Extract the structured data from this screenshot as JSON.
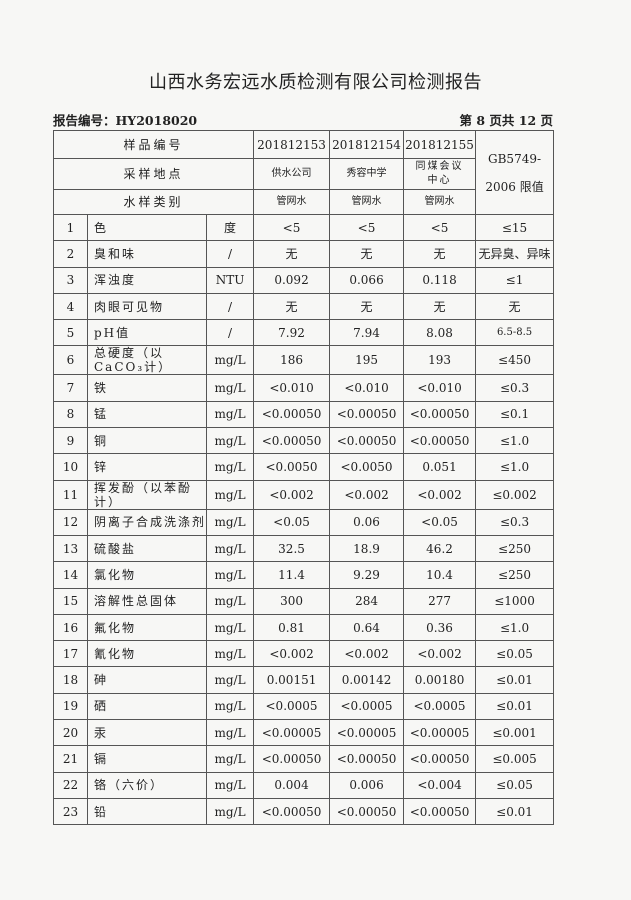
{
  "title": "山西水务宏远水质检测有限公司检测报告",
  "report_no": "报告编号：HY2018020",
  "page_info": "第 8 页共 12 页",
  "header": {
    "sample_no_label": "样品编号",
    "location_label": "采样地点",
    "type_label": "水样类别",
    "limit_label": "GB5749-2006 限值",
    "samples": [
      {
        "no": "201812153",
        "location": "供水公司",
        "type": "管网水"
      },
      {
        "no": "201812154",
        "location": "秀容中学",
        "type": "管网水"
      },
      {
        "no": "201812155",
        "location": "同煤会议中心",
        "type": "管网水"
      }
    ]
  },
  "rows": [
    {
      "n": "1",
      "name": "色",
      "unit": "度",
      "v": [
        "<5",
        "<5",
        "<5"
      ],
      "limit": "≤15"
    },
    {
      "n": "2",
      "name": "臭和味",
      "unit": "/",
      "v": [
        "无",
        "无",
        "无"
      ],
      "limit": "无异臭、异味"
    },
    {
      "n": "3",
      "name": "浑浊度",
      "unit": "NTU",
      "v": [
        "0.092",
        "0.066",
        "0.118"
      ],
      "limit": "≤1"
    },
    {
      "n": "4",
      "name": "肉眼可见物",
      "unit": "/",
      "v": [
        "无",
        "无",
        "无"
      ],
      "limit": "无"
    },
    {
      "n": "5",
      "name": "pH值",
      "unit": "/",
      "v": [
        "7.92",
        "7.94",
        "8.08"
      ],
      "limit": "6.5-8.5"
    },
    {
      "n": "6",
      "name": "总硬度（以CaCO₃计）",
      "unit": "mg/L",
      "v": [
        "186",
        "195",
        "193"
      ],
      "limit": "≤450"
    },
    {
      "n": "7",
      "name": "铁",
      "unit": "mg/L",
      "v": [
        "<0.010",
        "<0.010",
        "<0.010"
      ],
      "limit": "≤0.3"
    },
    {
      "n": "8",
      "name": "锰",
      "unit": "mg/L",
      "v": [
        "<0.00050",
        "<0.00050",
        "<0.00050"
      ],
      "limit": "≤0.1"
    },
    {
      "n": "9",
      "name": "铜",
      "unit": "mg/L",
      "v": [
        "<0.00050",
        "<0.00050",
        "<0.00050"
      ],
      "limit": "≤1.0"
    },
    {
      "n": "10",
      "name": "锌",
      "unit": "mg/L",
      "v": [
        "<0.0050",
        "<0.0050",
        "0.051"
      ],
      "limit": "≤1.0"
    },
    {
      "n": "11",
      "name": "挥发酚（以苯酚计）",
      "unit": "mg/L",
      "v": [
        "<0.002",
        "<0.002",
        "<0.002"
      ],
      "limit": "≤0.002"
    },
    {
      "n": "12",
      "name": "阴离子合成洗涤剂",
      "unit": "mg/L",
      "v": [
        "<0.05",
        "0.06",
        "<0.05"
      ],
      "limit": "≤0.3"
    },
    {
      "n": "13",
      "name": "硫酸盐",
      "unit": "mg/L",
      "v": [
        "32.5",
        "18.9",
        "46.2"
      ],
      "limit": "≤250"
    },
    {
      "n": "14",
      "name": "氯化物",
      "unit": "mg/L",
      "v": [
        "11.4",
        "9.29",
        "10.4"
      ],
      "limit": "≤250"
    },
    {
      "n": "15",
      "name": "溶解性总固体",
      "unit": "mg/L",
      "v": [
        "300",
        "284",
        "277"
      ],
      "limit": "≤1000"
    },
    {
      "n": "16",
      "name": "氟化物",
      "unit": "mg/L",
      "v": [
        "0.81",
        "0.64",
        "0.36"
      ],
      "limit": "≤1.0"
    },
    {
      "n": "17",
      "name": "氰化物",
      "unit": "mg/L",
      "v": [
        "<0.002",
        "<0.002",
        "<0.002"
      ],
      "limit": "≤0.05"
    },
    {
      "n": "18",
      "name": "砷",
      "unit": "mg/L",
      "v": [
        "0.00151",
        "0.00142",
        "0.00180"
      ],
      "limit": "≤0.01"
    },
    {
      "n": "19",
      "name": "硒",
      "unit": "mg/L",
      "v": [
        "<0.0005",
        "<0.0005",
        "<0.0005"
      ],
      "limit": "≤0.01"
    },
    {
      "n": "20",
      "name": "汞",
      "unit": "mg/L",
      "v": [
        "<0.00005",
        "<0.00005",
        "<0.00005"
      ],
      "limit": "≤0.001"
    },
    {
      "n": "21",
      "name": "镉",
      "unit": "mg/L",
      "v": [
        "<0.00050",
        "<0.00050",
        "<0.00050"
      ],
      "limit": "≤0.005"
    },
    {
      "n": "22",
      "name": "铬（六价）",
      "unit": "mg/L",
      "v": [
        "0.004",
        "0.006",
        "<0.004"
      ],
      "limit": "≤0.05"
    },
    {
      "n": "23",
      "name": "铅",
      "unit": "mg/L",
      "v": [
        "<0.00050",
        "<0.00050",
        "<0.00050"
      ],
      "limit": "≤0.01"
    }
  ]
}
